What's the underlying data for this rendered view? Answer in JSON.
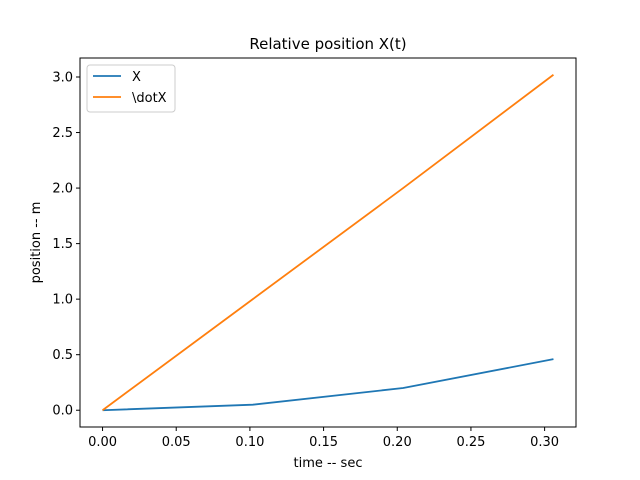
{
  "chart_data": {
    "type": "line",
    "title": "Relative position X(t)",
    "xlabel": "time -- sec",
    "ylabel": "position -- m",
    "xlim": [
      -0.0153,
      0.3213
    ],
    "ylim": [
      -0.151,
      3.171
    ],
    "xticks": [
      {
        "value": 0.0,
        "label": "0.00"
      },
      {
        "value": 0.05,
        "label": "0.05"
      },
      {
        "value": 0.1,
        "label": "0.10"
      },
      {
        "value": 0.15,
        "label": "0.15"
      },
      {
        "value": 0.2,
        "label": "0.20"
      },
      {
        "value": 0.25,
        "label": "0.25"
      },
      {
        "value": 0.3,
        "label": "0.30"
      }
    ],
    "yticks": [
      {
        "value": 0.0,
        "label": "0.0"
      },
      {
        "value": 0.5,
        "label": "0.5"
      },
      {
        "value": 1.0,
        "label": "1.0"
      },
      {
        "value": 1.5,
        "label": "1.5"
      },
      {
        "value": 2.0,
        "label": "2.0"
      },
      {
        "value": 2.5,
        "label": "2.5"
      },
      {
        "value": 3.0,
        "label": "3.0"
      }
    ],
    "grid": false,
    "legend_position": "top-left",
    "series": [
      {
        "name": "X",
        "color": "#1f77b4",
        "x": [
          0.0,
          0.102,
          0.204,
          0.306
        ],
        "y": [
          0.0,
          0.05,
          0.2,
          0.46
        ]
      },
      {
        "name": "\\dotX",
        "color": "#ff7f0e",
        "x": [
          0.0,
          0.102,
          0.204,
          0.306
        ],
        "y": [
          0.0,
          1.0,
          2.0,
          3.02
        ]
      }
    ]
  }
}
